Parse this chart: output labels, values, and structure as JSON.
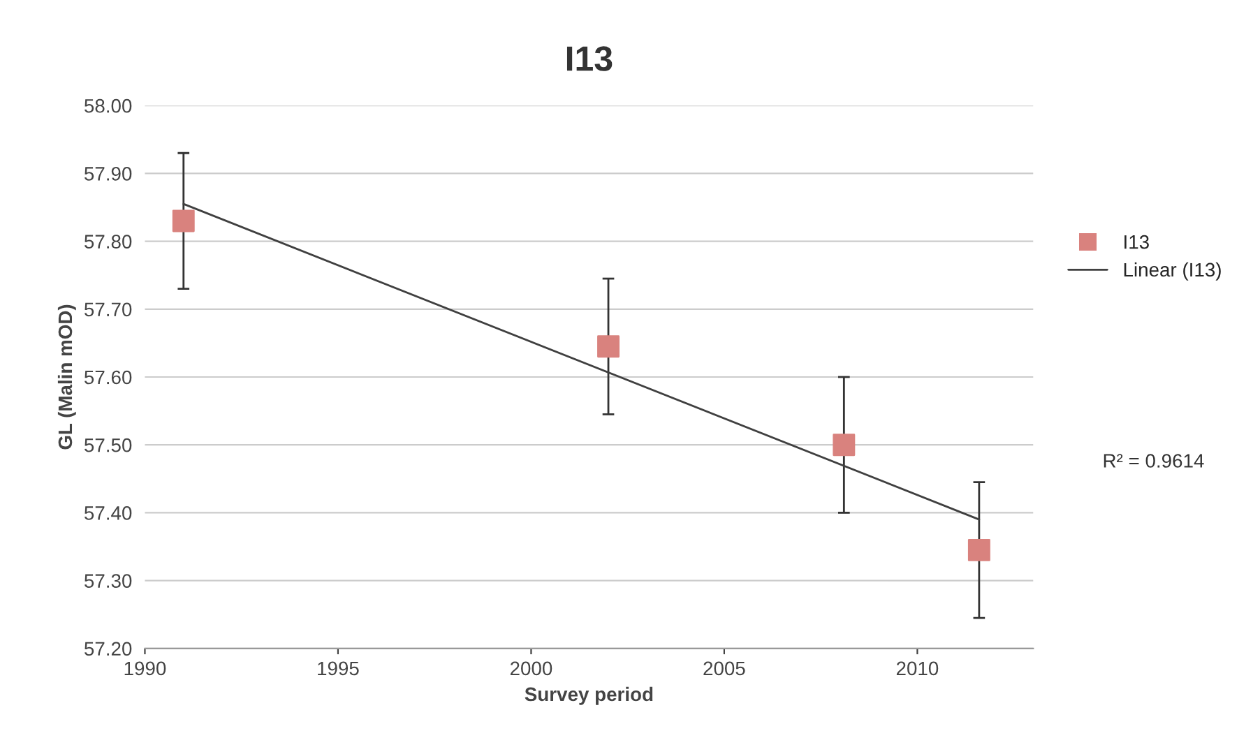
{
  "chart_data": {
    "type": "scatter",
    "title": "I13",
    "xlabel": "Survey period",
    "ylabel": "GL (Malin mOD)",
    "xlim": [
      1990,
      2013
    ],
    "xticks": [
      1990,
      1995,
      2000,
      2005,
      2010
    ],
    "ylim": [
      57.2,
      58.0
    ],
    "yticks": [
      {
        "value": 57.2,
        "label": "57.20"
      },
      {
        "value": 57.3,
        "label": "57.30"
      },
      {
        "value": 57.4,
        "label": "57.40"
      },
      {
        "value": 57.5,
        "label": "57.50"
      },
      {
        "value": 57.6,
        "label": "57.60"
      },
      {
        "value": 57.7,
        "label": "57.70"
      },
      {
        "value": 57.8,
        "label": "57.80"
      },
      {
        "value": 57.9,
        "label": "57.90"
      },
      {
        "value": 58.0,
        "label": "58.00"
      }
    ],
    "grid": "y",
    "legend": "right",
    "series": [
      {
        "name": "I13",
        "marker": "square",
        "color": "#d9827e",
        "x": [
          1991.0,
          2002.0,
          2008.1,
          2011.6
        ],
        "values": [
          57.83,
          57.645,
          57.5,
          57.345
        ],
        "errors": [
          0.1,
          0.1,
          0.1,
          0.1
        ]
      },
      {
        "name": "Linear (I13)",
        "type": "line",
        "marker": "none",
        "color": "#404040",
        "x": [
          1991.0,
          2011.6
        ],
        "values": [
          57.855,
          57.39
        ]
      }
    ],
    "annotations": [
      "R² = 0.9614"
    ]
  }
}
